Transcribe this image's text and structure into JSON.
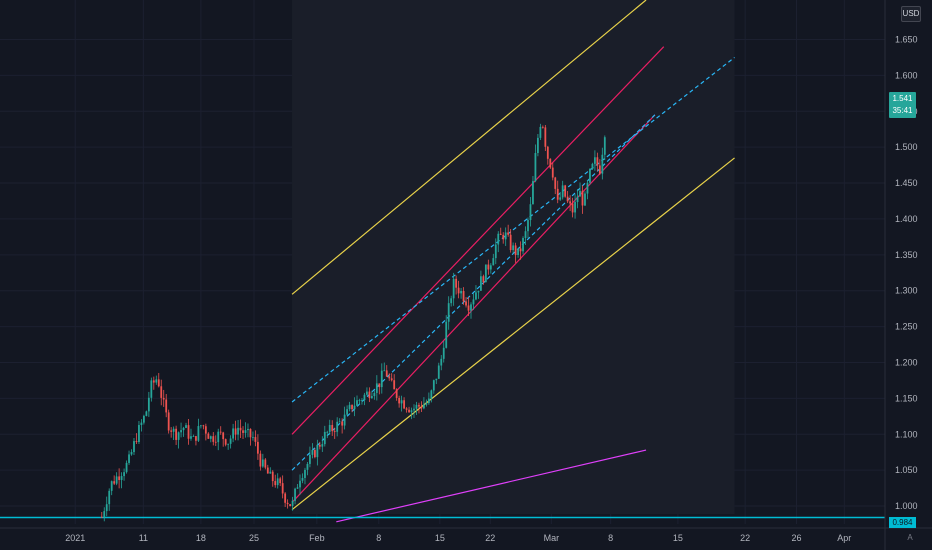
{
  "currency": "USD",
  "price_tag": {
    "price": "1.541",
    "countdown": "35:41"
  },
  "level_tag": "0.984",
  "auto_label": "A",
  "colors": {
    "background": "#131722",
    "grid": "#1c2030",
    "text": "#b2b5be",
    "up": "#26a69a",
    "down": "#ef5350",
    "outer_channel": "#e8d24a",
    "inner_channel": "#e91e63",
    "median_lines": "#29b6f6",
    "trend_line": "#e040fb",
    "level_line": "#00bcd4"
  },
  "chart_data": {
    "type": "candlestick",
    "series_name": "",
    "ylim": [
      0.975,
      1.705
    ],
    "xlim": [
      0,
      100
    ],
    "y_ticks": [
      "1.000",
      "1.050",
      "1.100",
      "1.150",
      "1.200",
      "1.250",
      "1.300",
      "1.350",
      "1.400",
      "1.450",
      "1.500",
      "1.550",
      "1.600",
      "1.650"
    ],
    "x_ticks": [
      {
        "label": "2021",
        "x": 8.5
      },
      {
        "label": "11",
        "x": 16.2
      },
      {
        "label": "18",
        "x": 22.7
      },
      {
        "label": "25",
        "x": 28.7
      },
      {
        "label": "Feb",
        "x": 35.8
      },
      {
        "label": "8",
        "x": 42.8
      },
      {
        "label": "15",
        "x": 49.7
      },
      {
        "label": "22",
        "x": 55.4
      },
      {
        "label": "Mar",
        "x": 62.3
      },
      {
        "label": "8",
        "x": 69.0
      },
      {
        "label": "15",
        "x": 76.6
      },
      {
        "label": "22",
        "x": 84.2
      },
      {
        "label": "26",
        "x": 90.0
      },
      {
        "label": "Apr",
        "x": 95.4
      }
    ],
    "price_path": [
      [
        11.5,
        0.985
      ],
      [
        12.5,
        1.03
      ],
      [
        13.5,
        1.045
      ],
      [
        14.5,
        1.06
      ],
      [
        15.5,
        1.1
      ],
      [
        16.5,
        1.13
      ],
      [
        17.0,
        1.165
      ],
      [
        17.8,
        1.18
      ],
      [
        18.3,
        1.15
      ],
      [
        19.0,
        1.115
      ],
      [
        19.8,
        1.1
      ],
      [
        20.8,
        1.11
      ],
      [
        21.8,
        1.09
      ],
      [
        22.8,
        1.115
      ],
      [
        23.8,
        1.095
      ],
      [
        24.8,
        1.1
      ],
      [
        25.8,
        1.09
      ],
      [
        26.8,
        1.11
      ],
      [
        27.8,
        1.1
      ],
      [
        28.6,
        1.095
      ],
      [
        29.5,
        1.06
      ],
      [
        30.5,
        1.04
      ],
      [
        31.5,
        1.03
      ],
      [
        32.3,
        1.01
      ],
      [
        33.0,
        1.0
      ],
      [
        33.8,
        1.04
      ],
      [
        34.8,
        1.06
      ],
      [
        35.8,
        1.08
      ],
      [
        36.8,
        1.1
      ],
      [
        37.8,
        1.11
      ],
      [
        38.8,
        1.12
      ],
      [
        39.8,
        1.14
      ],
      [
        40.8,
        1.15
      ],
      [
        41.8,
        1.16
      ],
      [
        42.8,
        1.17
      ],
      [
        43.5,
        1.19
      ],
      [
        44.5,
        1.16
      ],
      [
        45.5,
        1.145
      ],
      [
        46.5,
        1.135
      ],
      [
        47.5,
        1.14
      ],
      [
        48.5,
        1.145
      ],
      [
        49.0,
        1.17
      ],
      [
        49.8,
        1.2
      ],
      [
        50.5,
        1.26
      ],
      [
        51.2,
        1.31
      ],
      [
        52.0,
        1.3
      ],
      [
        53.0,
        1.28
      ],
      [
        53.8,
        1.3
      ],
      [
        54.6,
        1.32
      ],
      [
        55.4,
        1.34
      ],
      [
        56.2,
        1.37
      ],
      [
        57.0,
        1.38
      ],
      [
        57.8,
        1.36
      ],
      [
        58.6,
        1.35
      ],
      [
        59.4,
        1.38
      ],
      [
        60.0,
        1.42
      ],
      [
        60.6,
        1.5
      ],
      [
        61.2,
        1.545
      ],
      [
        61.8,
        1.49
      ],
      [
        62.4,
        1.47
      ],
      [
        63.0,
        1.42
      ],
      [
        63.6,
        1.44
      ],
      [
        64.2,
        1.42
      ],
      [
        64.8,
        1.41
      ],
      [
        65.4,
        1.44
      ],
      [
        66.0,
        1.42
      ],
      [
        66.6,
        1.46
      ],
      [
        67.2,
        1.48
      ],
      [
        67.8,
        1.47
      ],
      [
        68.3,
        1.52
      ],
      [
        68.6,
        1.541
      ]
    ],
    "drawings": {
      "outer_channel_upper": [
        [
          33.0,
          1.295
        ],
        [
          73.0,
          1.705
        ]
      ],
      "outer_channel_lower": [
        [
          33.0,
          0.995
        ],
        [
          83.0,
          1.485
        ]
      ],
      "inner_channel_upper": [
        [
          33.0,
          1.1
        ],
        [
          75.0,
          1.64
        ]
      ],
      "inner_channel_lower": [
        [
          33.0,
          1.005
        ],
        [
          74.0,
          1.545
        ]
      ],
      "median_line_upper": [
        [
          33.0,
          1.145
        ],
        [
          83.0,
          1.625
        ]
      ],
      "median_line_lower": [
        [
          33.0,
          1.05
        ],
        [
          74.0,
          1.545
        ]
      ],
      "trend_line": [
        [
          38.0,
          0.978
        ],
        [
          73.0,
          1.078
        ]
      ],
      "horizontal_level": 0.984,
      "shaded_region": {
        "x0": 33.0,
        "x1": 83.0
      }
    }
  }
}
